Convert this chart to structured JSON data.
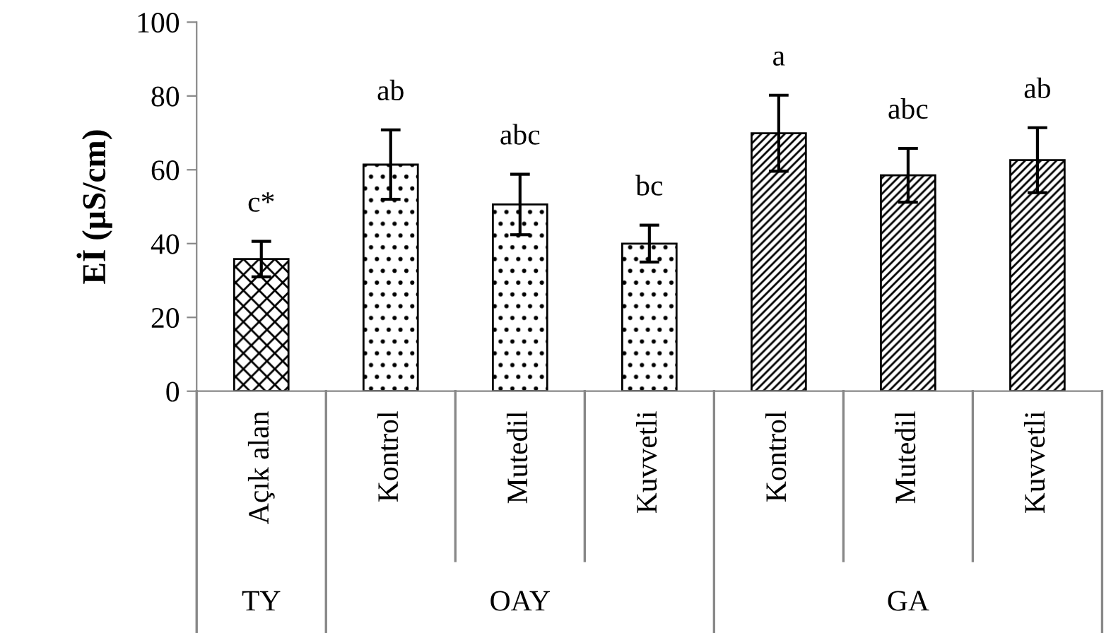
{
  "chart_data": {
    "type": "bar",
    "ylabel": "Eİ (µS/cm)",
    "categories": [
      "Açık alan",
      "Kontrol",
      "Mutedil",
      "Kuvvetli",
      "Kontrol",
      "Mutedil",
      "Kuvvetli"
    ],
    "values": [
      35.8,
      61.4,
      50.6,
      40.0,
      69.9,
      58.5,
      62.6
    ],
    "errors": [
      4.8,
      9.4,
      8.2,
      5.0,
      10.3,
      7.3,
      8.8
    ],
    "value_labels": [
      "c*",
      "ab",
      "abc",
      "bc",
      "a",
      "abc",
      "ab"
    ],
    "annotations": [
      "TY",
      "OAY",
      "GA"
    ],
    "ylim": [
      0,
      100
    ],
    "yticks": [
      0,
      20,
      40,
      60,
      80,
      100
    ],
    "grid": false,
    "legend": false
  }
}
